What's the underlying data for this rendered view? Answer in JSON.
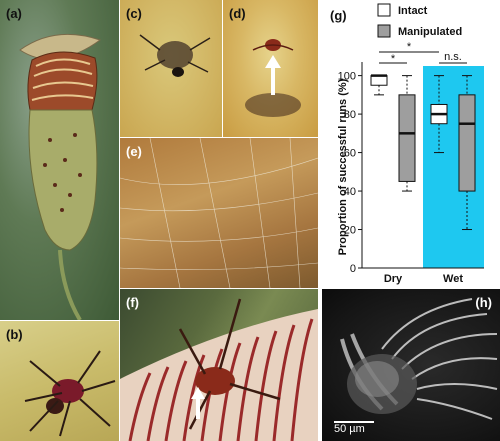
{
  "panels": {
    "a": {
      "label": "(a)"
    },
    "b": {
      "label": "(b)"
    },
    "c": {
      "label": "(c)"
    },
    "d": {
      "label": "(d)"
    },
    "e": {
      "label": "(e)"
    },
    "f": {
      "label": "(f)"
    },
    "g": {
      "label": "(g)"
    },
    "h": {
      "label": "(h)",
      "scalebar": "50 µm"
    }
  },
  "chart_data": {
    "type": "box",
    "ylabel": "Proportion of successful runs (%)",
    "ylim": [
      0,
      105
    ],
    "yticks": [
      0,
      20,
      40,
      60,
      80,
      100
    ],
    "categories": [
      "Dry",
      "Wet"
    ],
    "legend": [
      {
        "name": "Intact",
        "color": "#ffffff"
      },
      {
        "name": "Manipulated",
        "color": "#9e9e9e"
      }
    ],
    "wet_background": "#1ec8f0",
    "boxes": [
      {
        "category": "Dry",
        "series": "Intact",
        "whisker_low": 90,
        "q1": 95,
        "median": 100,
        "q3": 100,
        "whisker_high": 100
      },
      {
        "category": "Dry",
        "series": "Manipulated",
        "whisker_low": 40,
        "q1": 45,
        "median": 70,
        "q3": 90,
        "whisker_high": 100
      },
      {
        "category": "Wet",
        "series": "Intact",
        "whisker_low": 60,
        "q1": 75,
        "median": 80,
        "q3": 85,
        "whisker_high": 100
      },
      {
        "category": "Wet",
        "series": "Manipulated",
        "whisker_low": 20,
        "q1": 40,
        "median": 75,
        "q3": 90,
        "whisker_high": 100
      }
    ],
    "significance": [
      {
        "label": "*"
      },
      {
        "label": "*"
      },
      {
        "label": "n.s."
      }
    ]
  }
}
